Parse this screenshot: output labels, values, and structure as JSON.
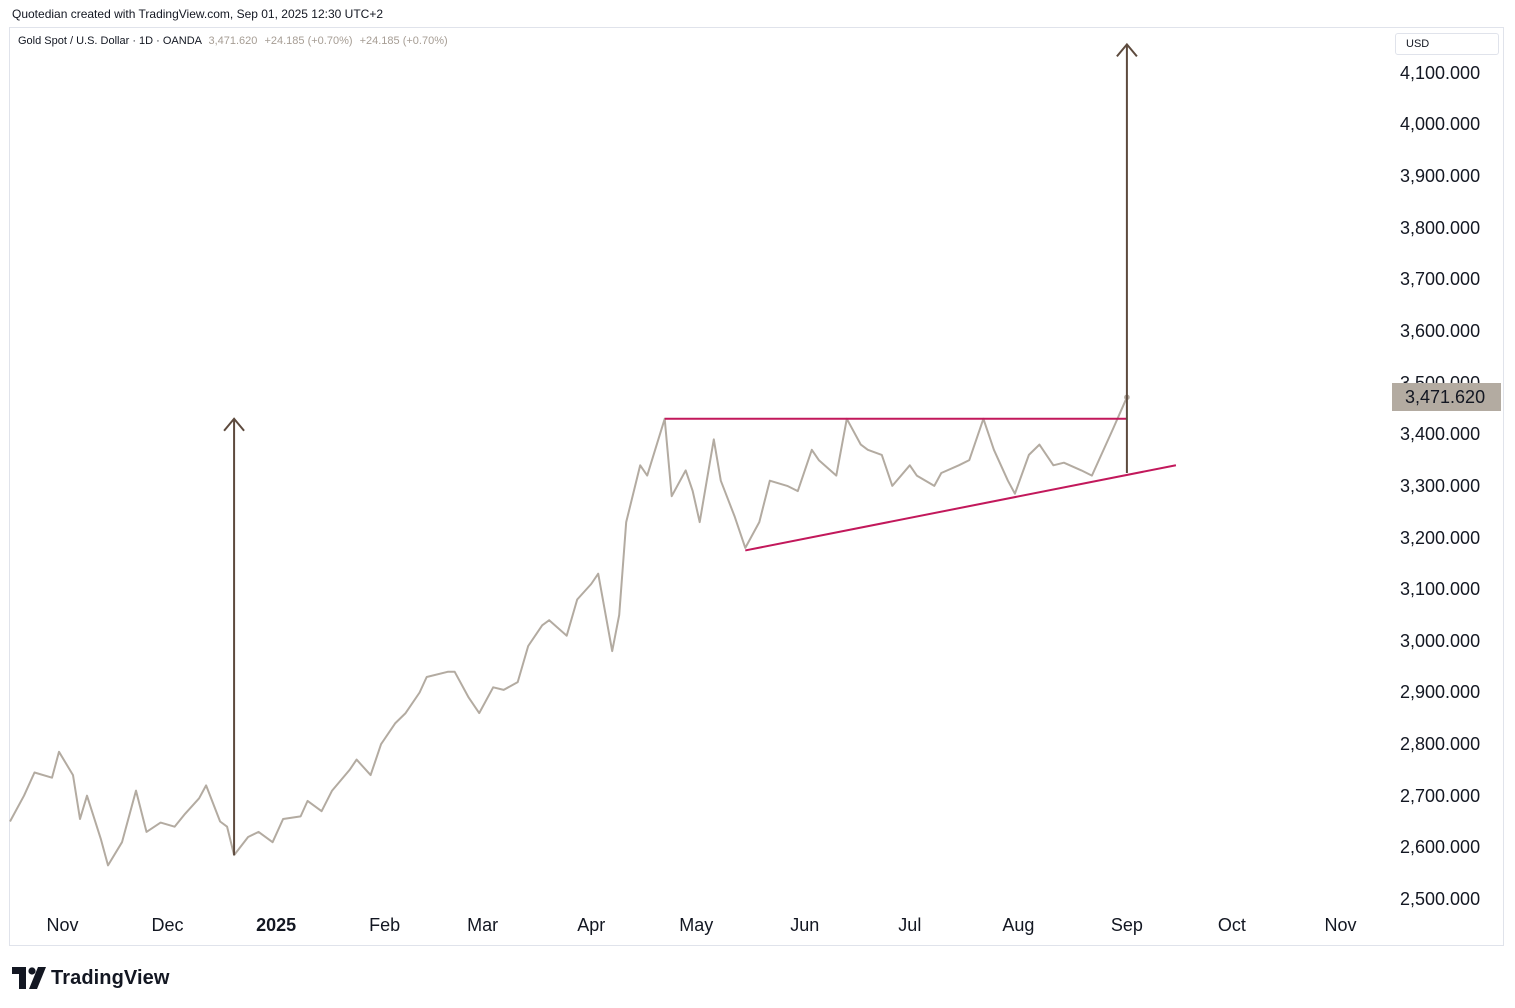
{
  "header": {
    "credit": "Quotedian created with TradingView.com, Sep 01, 2025 12:30 UTC+2"
  },
  "legend": {
    "symbol": "Gold Spot / U.S. Dollar · 1D · OANDA",
    "close": "3,471.620",
    "change": "+24.185 (+0.70%)",
    "change2": "+24.185 (+0.70%)"
  },
  "axis": {
    "currency": "USD",
    "last_price": "3,471.620"
  },
  "brand": {
    "text": "TradingView"
  },
  "colors": {
    "price_line": "#b3aba1",
    "trendline": "#c2185b",
    "arrow": "#5d4a3d",
    "price_label_bg": "#b3aba1"
  },
  "chart_data": {
    "type": "line",
    "series": [
      {
        "values_at": "dates",
        "x": [
          "2024-10-17",
          "2024-10-21",
          "2024-10-24",
          "2024-10-29",
          "2024-10-31",
          "2024-11-04",
          "2024-11-06",
          "2024-11-08",
          "2024-11-12",
          "2024-11-14",
          "2024-11-18",
          "2024-11-22",
          "2024-11-25",
          "2024-11-29",
          "2024-12-03",
          "2024-12-06",
          "2024-12-10",
          "2024-12-12",
          "2024-12-16",
          "2024-12-18",
          "2024-12-20",
          "2024-12-24",
          "2024-12-27",
          "2024-12-31",
          "2025-01-03",
          "2025-01-08",
          "2025-01-10",
          "2025-01-14",
          "2025-01-17",
          "2025-01-22",
          "2025-01-24",
          "2025-01-28",
          "2025-01-31",
          "2025-02-04",
          "2025-02-07",
          "2025-02-11",
          "2025-02-13",
          "2025-02-19",
          "2025-02-21",
          "2025-02-25",
          "2025-02-28",
          "2025-03-04",
          "2025-03-07",
          "2025-03-11",
          "2025-03-14",
          "2025-03-18",
          "2025-03-20",
          "2025-03-25",
          "2025-03-28",
          "2025-04-01",
          "2025-04-03",
          "2025-04-07",
          "2025-04-09",
          "2025-04-11",
          "2025-04-15",
          "2025-04-17",
          "2025-04-22",
          "2025-04-24",
          "2025-04-28",
          "2025-04-30",
          "2025-05-02",
          "2025-05-06",
          "2025-05-08",
          "2025-05-12",
          "2025-05-15",
          "2025-05-19",
          "2025-05-22",
          "2025-05-27",
          "2025-05-30",
          "2025-06-03",
          "2025-06-05",
          "2025-06-10",
          "2025-06-13",
          "2025-06-17",
          "2025-06-19",
          "2025-06-23",
          "2025-06-26",
          "2025-07-01",
          "2025-07-03",
          "2025-07-08",
          "2025-07-10",
          "2025-07-15",
          "2025-07-18",
          "2025-07-22",
          "2025-07-25",
          "2025-07-29",
          "2025-07-31",
          "2025-08-04",
          "2025-08-07",
          "2025-08-11",
          "2025-08-14",
          "2025-08-19",
          "2025-08-22",
          "2025-08-26",
          "2025-08-28",
          "2025-09-01"
        ],
        "y": [
          2650,
          2700,
          2745,
          2735,
          2785,
          2740,
          2655,
          2700,
          2615,
          2565,
          2610,
          2710,
          2630,
          2648,
          2640,
          2665,
          2695,
          2720,
          2650,
          2640,
          2585,
          2620,
          2630,
          2610,
          2655,
          2660,
          2690,
          2670,
          2710,
          2750,
          2770,
          2740,
          2800,
          2840,
          2860,
          2900,
          2930,
          2940,
          2940,
          2890,
          2860,
          2910,
          2905,
          2920,
          2990,
          3030,
          3040,
          3010,
          3080,
          3110,
          3130,
          2980,
          3050,
          3230,
          3340,
          3320,
          3430,
          3280,
          3330,
          3290,
          3230,
          3390,
          3310,
          3240,
          3180,
          3230,
          3310,
          3300,
          3290,
          3370,
          3350,
          3320,
          3430,
          3380,
          3370,
          3360,
          3300,
          3340,
          3320,
          3300,
          3325,
          3340,
          3350,
          3430,
          3370,
          3310,
          3285,
          3360,
          3380,
          3340,
          3345,
          3330,
          3320,
          3380,
          3410,
          3471.62
        ]
      }
    ],
    "y_ticks": [
      "4,100.000",
      "4,000.000",
      "3,900.000",
      "3,800.000",
      "3,700.000",
      "3,600.000",
      "3,500.000",
      "3,400.000",
      "3,300.000",
      "3,200.000",
      "3,100.000",
      "3,000.000",
      "2,900.000",
      "2,800.000",
      "2,700.000",
      "2,600.000",
      "2,500.000"
    ],
    "x_ticks": [
      {
        "label": "Nov",
        "date": "2024-11-01"
      },
      {
        "label": "Dec",
        "date": "2024-12-01"
      },
      {
        "label": "2025",
        "date": "2025-01-01",
        "bold": true
      },
      {
        "label": "Feb",
        "date": "2025-02-01"
      },
      {
        "label": "Mar",
        "date": "2025-03-01"
      },
      {
        "label": "Apr",
        "date": "2025-04-01"
      },
      {
        "label": "May",
        "date": "2025-05-01"
      },
      {
        "label": "Jun",
        "date": "2025-06-01"
      },
      {
        "label": "Jul",
        "date": "2025-07-01"
      },
      {
        "label": "Aug",
        "date": "2025-08-01"
      },
      {
        "label": "Sep",
        "date": "2025-09-01"
      },
      {
        "label": "Oct",
        "date": "2025-10-01"
      },
      {
        "label": "Nov",
        "date": "2025-11-01"
      }
    ],
    "ylim": [
      2500,
      4150
    ],
    "xlim": [
      "2024-10-17",
      "2025-11-16"
    ],
    "annotations": [
      {
        "kind": "horizontal_line",
        "name": "resistance",
        "x1": "2025-04-22",
        "x2": "2025-09-01",
        "y": 3430
      },
      {
        "kind": "trendline",
        "name": "rising-support",
        "x1": "2025-05-15",
        "y1": 3175,
        "x2": "2025-09-15",
        "y2": 3340
      },
      {
        "kind": "arrow",
        "name": "measured-move-2024",
        "x": "2024-12-20",
        "y1": 2585,
        "y2": 3430
      },
      {
        "kind": "arrow",
        "name": "measured-move-2025",
        "x": "2025-09-01",
        "y1": 3325,
        "y2": 4155
      }
    ]
  }
}
